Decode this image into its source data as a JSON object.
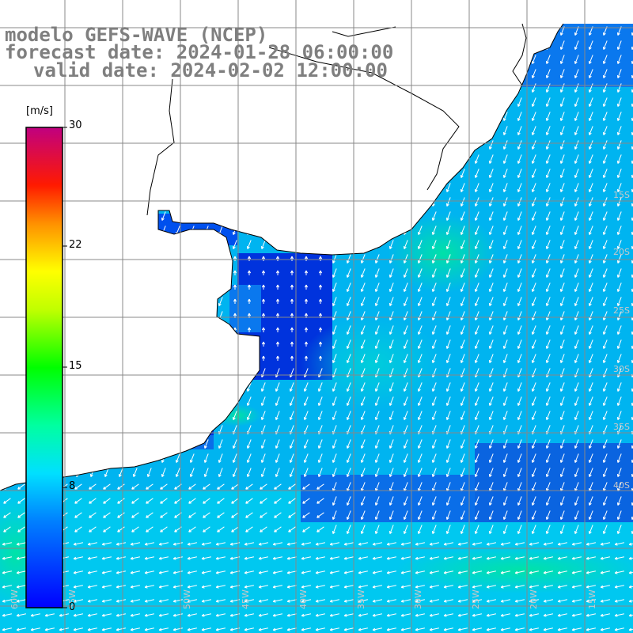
{
  "title": {
    "model": "modelo GEFS-WAVE (NCEP)",
    "forecast": "forecast date: 2024-01-28 06:00:00",
    "valid": "valid date: 2024-02-02 12:00:00"
  },
  "colorbar": {
    "unit": "[m/s]",
    "ticks": [
      "30",
      "22",
      "15",
      "8",
      "0"
    ],
    "colors": [
      "#0000ff",
      "#0080ff",
      "#00c8ff",
      "#00ffff",
      "#00ff80",
      "#00ff00",
      "#80ff00",
      "#ffff00",
      "#ffa000",
      "#ff4000",
      "#ff0000",
      "#e00060",
      "#c00080"
    ]
  },
  "palette": {
    "ocean_deep": "#0033dd",
    "ocean_mid": "#0a78ee",
    "ocean_light": "#00b4f0",
    "ocean_cyan": "#00d2e6",
    "ocean_green": "#00e6a0",
    "land": "#ffffff",
    "grid": "#888888",
    "arrow": "#ffffff"
  },
  "axis_labels": {
    "lon": [
      "60W",
      "55W",
      "50W",
      "45W",
      "40W",
      "35W",
      "30W",
      "25W",
      "20W",
      "15W",
      "10W"
    ],
    "lat": [
      "15S",
      "20S",
      "25S",
      "30S",
      "35S",
      "40S"
    ]
  }
}
